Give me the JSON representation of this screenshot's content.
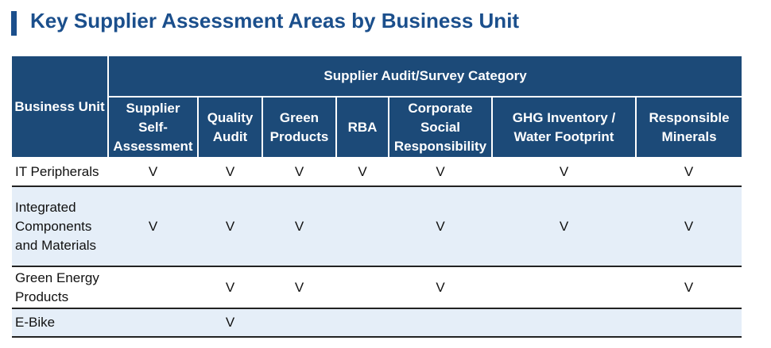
{
  "header": {
    "title": "Key Supplier Assessment Areas by Business Unit"
  },
  "table": {
    "row_header": "Business Unit",
    "group_header": "Supplier Audit/Survey Category",
    "columns": [
      "Supplier Self-Assessment",
      "Quality Audit",
      "Green Products",
      "RBA",
      "Corporate Social Responsibility",
      "GHG Inventory / Water Footprint",
      "Responsible Minerals"
    ],
    "rows": [
      {
        "unit": "IT Peripherals",
        "cells": [
          "V",
          "V",
          "V",
          "V",
          "V",
          "V",
          "V"
        ]
      },
      {
        "unit": "Integrated Components and Materials",
        "cells": [
          "V",
          "V",
          "V",
          null,
          "V",
          "V",
          "V"
        ]
      },
      {
        "unit": "Green Energy Products",
        "cells": [
          null,
          "V",
          "V",
          null,
          "V",
          null,
          "V"
        ]
      },
      {
        "unit": "E-Bike",
        "cells": [
          null,
          "V",
          null,
          null,
          null,
          null,
          null
        ]
      }
    ]
  }
}
